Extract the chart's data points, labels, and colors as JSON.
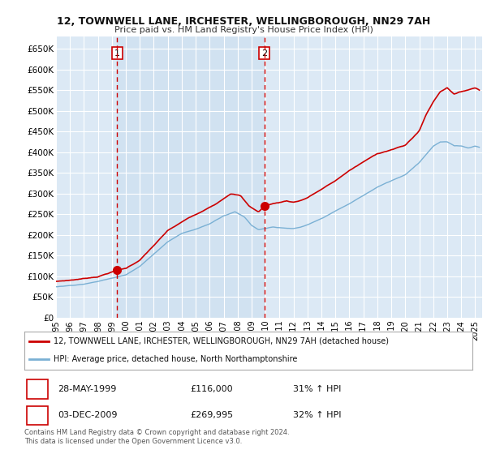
{
  "title": "12, TOWNWELL LANE, IRCHESTER, WELLINGBOROUGH, NN29 7AH",
  "subtitle": "Price paid vs. HM Land Registry's House Price Index (HPI)",
  "ylim": [
    0,
    680000
  ],
  "yticks": [
    0,
    50000,
    100000,
    150000,
    200000,
    250000,
    300000,
    350000,
    400000,
    450000,
    500000,
    550000,
    600000,
    650000
  ],
  "ytick_labels": [
    "£0",
    "£50K",
    "£100K",
    "£150K",
    "£200K",
    "£250K",
    "£300K",
    "£350K",
    "£400K",
    "£450K",
    "£500K",
    "£550K",
    "£600K",
    "£650K"
  ],
  "line1_color": "#cc0000",
  "line2_color": "#7ab0d4",
  "vline_color": "#cc0000",
  "grid_color": "#cccccc",
  "background_color": "#ffffff",
  "plot_bg_color": "#dce9f5",
  "marker1_date": 1999.38,
  "marker1_value": 116000,
  "marker2_date": 2009.92,
  "marker2_value": 269995,
  "legend_line1": "12, TOWNWELL LANE, IRCHESTER, WELLINGBOROUGH, NN29 7AH (detached house)",
  "legend_line2": "HPI: Average price, detached house, North Northamptonshire",
  "table_row1": [
    "1",
    "28-MAY-1999",
    "£116,000",
    "31% ↑ HPI"
  ],
  "table_row2": [
    "2",
    "03-DEC-2009",
    "£269,995",
    "32% ↑ HPI"
  ],
  "footnote": "Contains HM Land Registry data © Crown copyright and database right 2024.\nThis data is licensed under the Open Government Licence v3.0.",
  "xmin": 1995.0,
  "xmax": 2025.5,
  "shade_color": "#dce9f5"
}
